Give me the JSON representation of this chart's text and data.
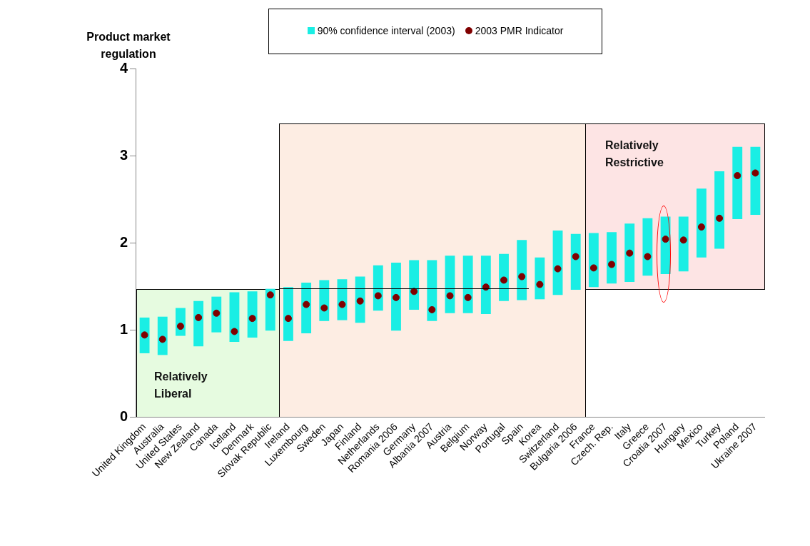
{
  "chart_data": {
    "type": "bar",
    "ylabel": "Product market regulation",
    "categories": [
      "United Kingdom",
      "Australia",
      "United States",
      "New Zealand",
      "Canada",
      "Iceland",
      "Denmark",
      "Slovak Republic",
      "Ireland",
      "Luxembourg",
      "Sweden",
      "Japan",
      "Finland",
      "Netherlands",
      "Romania 2006",
      "Germany",
      "Albania 2007",
      "Austria",
      "Belgium",
      "Norway",
      "Portugal",
      "Spain",
      "Korea",
      "Switzerland",
      "Bulgaria 2006",
      "France",
      "Czech. Rep.",
      "Italy",
      "Greece",
      "Croatia 2007",
      "Hungary",
      "Mexico",
      "Turkey",
      "Poland",
      "Ukraine 2007"
    ],
    "series": [
      {
        "name": "90% confidence interval (2003)",
        "color": "#1aeee4",
        "base": [
          0.73,
          0.71,
          0.93,
          0.81,
          0.97,
          0.86,
          0.91,
          0.99,
          0.87,
          0.96,
          1.1,
          1.11,
          1.08,
          1.22,
          0.99,
          1.23,
          1.1,
          1.19,
          1.19,
          1.18,
          1.33,
          1.34,
          1.35,
          1.4,
          1.46,
          1.49,
          1.53,
          1.55,
          1.62,
          1.64,
          1.67,
          1.83,
          1.93,
          2.27,
          2.32
        ],
        "values": [
          0.41,
          0.44,
          0.32,
          0.52,
          0.41,
          0.57,
          0.53,
          0.48,
          0.62,
          0.58,
          0.47,
          0.47,
          0.53,
          0.52,
          0.78,
          0.57,
          0.7,
          0.66,
          0.66,
          0.67,
          0.54,
          0.69,
          0.48,
          0.74,
          0.64,
          0.62,
          0.59,
          0.67,
          0.66,
          0.66,
          0.63,
          0.79,
          0.89,
          0.83,
          0.78
        ]
      },
      {
        "type": "scatter",
        "name": "2003 PMR Indicator",
        "color": "#800000",
        "marker": "circle",
        "values": [
          0.94,
          0.89,
          1.04,
          1.14,
          1.19,
          0.98,
          1.13,
          1.4,
          1.13,
          1.29,
          1.25,
          1.29,
          1.33,
          1.39,
          1.37,
          1.44,
          1.23,
          1.39,
          1.37,
          1.49,
          1.57,
          1.61,
          1.52,
          1.7,
          1.84,
          1.71,
          1.75,
          1.88,
          1.84,
          2.04,
          2.03,
          2.18,
          2.28,
          2.77,
          2.8
        ]
      }
    ],
    "ylim": [
      0,
      4
    ],
    "yticks": [
      0,
      1,
      2,
      3,
      4
    ],
    "grid": false,
    "legend": "top",
    "annotations": [
      "Relatively Liberal",
      "Relatively Restrictive"
    ]
  }
}
